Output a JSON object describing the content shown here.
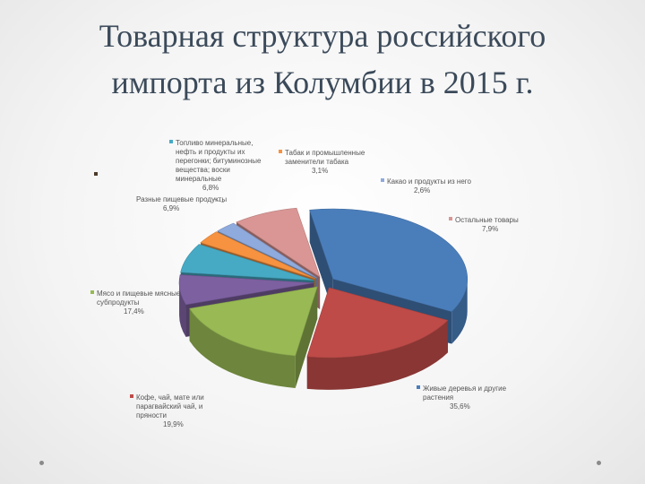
{
  "slide": {
    "title_line1": "Товарная структура российского",
    "title_line2": "импорта из Колумбии в 2015 г."
  },
  "chart_data": {
    "type": "pie",
    "title": "",
    "slices": [
      {
        "label": [
          "Живые деревья и другие",
          "растения"
        ],
        "value": 35.6,
        "value_label": "35,6%",
        "color": "#4a7ebb"
      },
      {
        "label": [
          "Кофе, чай, мате или",
          "парагвайский чай, и",
          "пряности"
        ],
        "value": 19.9,
        "value_label": "19,9%",
        "color": "#be4b48"
      },
      {
        "label": [
          "Мясо и пищевые мясные",
          "субпродукты"
        ],
        "value": 17.4,
        "value_label": "17,4%",
        "color": "#98b954"
      },
      {
        "label": [
          "Разные пищевые продукты"
        ],
        "value": 6.9,
        "value_label": "6,9%",
        "color": "#7d60a0"
      },
      {
        "label": [
          "Топливо минеральные,",
          "нефть и продукты их",
          "перегонки; битуминозные",
          "вещества; воски",
          "минеральные"
        ],
        "value": 6.8,
        "value_label": "6,8%",
        "color": "#46aac5"
      },
      {
        "label": [
          "Табак и промышленные",
          "заменители табака"
        ],
        "value": 3.1,
        "value_label": "3,1%",
        "color": "#f69240"
      },
      {
        "label": [
          "Какао и продукты из него"
        ],
        "value": 2.6,
        "value_label": "2,6%",
        "color": "#8faadc"
      },
      {
        "label": [
          "Остальные товары"
        ],
        "value": 7.9,
        "value_label": "7,9%",
        "color": "#d99694"
      }
    ]
  }
}
